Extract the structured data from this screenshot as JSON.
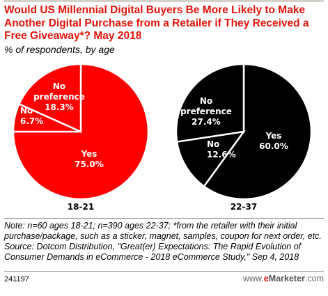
{
  "header": {
    "title": "Would US Millennial Digital Buyers Be More Likely to Make Another Digital Purchase from a Retailer if They Received a Free Giveaway*? May 2018",
    "subtitle": "% of respondents, by age"
  },
  "colors": {
    "title": "#e1140a",
    "pie_left": "#ff0000",
    "pie_right": "#000000",
    "slice_border": "#ffffff"
  },
  "chart_data": [
    {
      "type": "pie",
      "name": "18-21",
      "caption": "18-21",
      "slices": [
        {
          "label": "Yes",
          "value": 75.0,
          "value_text": "75.0%"
        },
        {
          "label": "No",
          "value": 6.7,
          "value_text": "6.7%"
        },
        {
          "label": "No preference",
          "value": 18.3,
          "value_text": "18.3%"
        }
      ]
    },
    {
      "type": "pie",
      "name": "22-37",
      "caption": "22-37",
      "slices": [
        {
          "label": "Yes",
          "value": 60.0,
          "value_text": "60.0%"
        },
        {
          "label": "No",
          "value": 12.6,
          "value_text": "12.6%"
        },
        {
          "label": "No preference",
          "value": 27.4,
          "value_text": "27.4%"
        }
      ]
    }
  ],
  "notes": {
    "note": "Note: n=60 ages 18-21; n=390 ages 22-37; *from the retailer with their initial purchase/package, such as a sticker, magnet, samples, coupon for next order, etc.",
    "source": "Source: Dotcom Distribution, \"Great(er) Expectations: The Rapid Evolution of Consumer Demands in eCommerce - 2018 eCommerce Study,\" Sep 4, 2018"
  },
  "footer": {
    "chart_id": "241197",
    "brand_prefix": "www.",
    "brand_e": "e",
    "brand_rest": "Marketer",
    "brand_suffix": ".com"
  }
}
